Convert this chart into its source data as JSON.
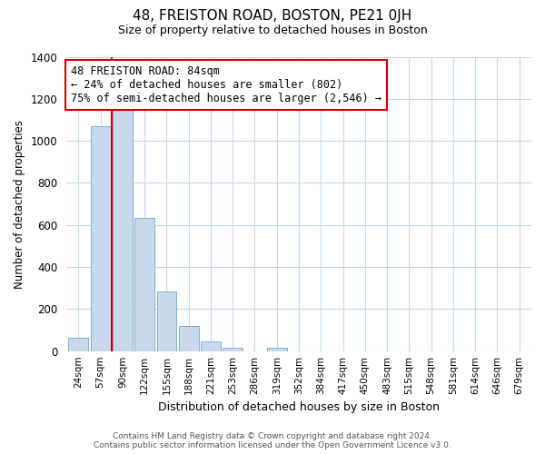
{
  "title": "48, FREISTON ROAD, BOSTON, PE21 0JH",
  "subtitle": "Size of property relative to detached houses in Boston",
  "xlabel": "Distribution of detached houses by size in Boston",
  "ylabel": "Number of detached properties",
  "bar_labels": [
    "24sqm",
    "57sqm",
    "90sqm",
    "122sqm",
    "155sqm",
    "188sqm",
    "221sqm",
    "253sqm",
    "286sqm",
    "319sqm",
    "352sqm",
    "384sqm",
    "417sqm",
    "450sqm",
    "483sqm",
    "515sqm",
    "548sqm",
    "581sqm",
    "614sqm",
    "646sqm",
    "679sqm"
  ],
  "bar_values": [
    65,
    1070,
    1155,
    635,
    285,
    120,
    47,
    18,
    0,
    18,
    0,
    0,
    0,
    0,
    0,
    0,
    0,
    0,
    0,
    0,
    0
  ],
  "bar_color": "#c8d9ee",
  "bar_edge_color": "#7aafd4",
  "annotation_text": "48 FREISTON ROAD: 84sqm\n← 24% of detached houses are smaller (802)\n75% of semi-detached houses are larger (2,546) →",
  "annotation_box_color": "#ffffff",
  "annotation_box_edge_color": "#cc0000",
  "vline_color": "#cc0000",
  "vline_x_idx": 1.5,
  "ylim": [
    0,
    1400
  ],
  "yticks": [
    0,
    200,
    400,
    600,
    800,
    1000,
    1200,
    1400
  ],
  "footer_line1": "Contains HM Land Registry data © Crown copyright and database right 2024.",
  "footer_line2": "Contains public sector information licensed under the Open Government Licence v3.0.",
  "bg_color": "#ffffff",
  "grid_color": "#c8d8e8"
}
